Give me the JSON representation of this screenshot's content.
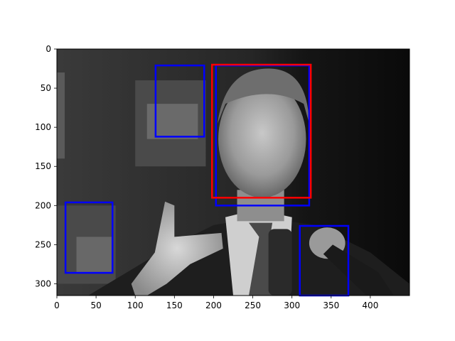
{
  "chart_data": {
    "type": "image",
    "title": "",
    "xlabel": "",
    "ylabel": "",
    "xlim": [
      0,
      450
    ],
    "ylim": [
      315,
      0
    ],
    "y_axis_inverted": true,
    "grid": false,
    "image": {
      "description_color_mode": "grayscale",
      "width": 450,
      "height": 315
    },
    "x_ticks": [
      0,
      50,
      100,
      150,
      200,
      250,
      300,
      350,
      400
    ],
    "y_ticks": [
      0,
      50,
      100,
      150,
      200,
      250,
      300
    ],
    "boxes": [
      {
        "x0": 126,
        "y0": 21,
        "x1": 188,
        "y1": 112,
        "color": "#0000ff"
      },
      {
        "x0": 11,
        "y0": 196,
        "x1": 71,
        "y1": 286,
        "color": "#0000ff"
      },
      {
        "x0": 203,
        "y0": 21,
        "x1": 322,
        "y1": 200,
        "color": "#0000ff"
      },
      {
        "x0": 310,
        "y0": 226,
        "x1": 372,
        "y1": 315,
        "color": "#0000ff"
      },
      {
        "x0": 198,
        "y0": 20,
        "x1": 324,
        "y1": 190,
        "color": "#ff0000"
      }
    ]
  }
}
